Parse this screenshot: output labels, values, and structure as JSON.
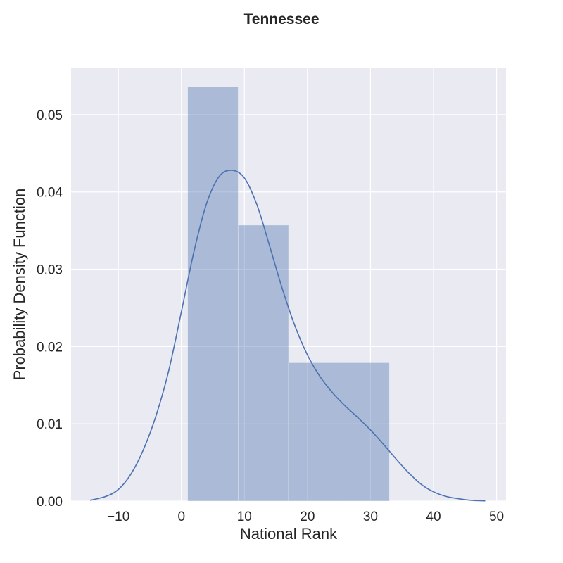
{
  "chart_data": {
    "type": "bar",
    "subtype": "histogram-with-kde",
    "title": "Tennessee",
    "xlabel": "National Rank",
    "ylabel": "Probability Density Function",
    "xlim": [
      -17.5,
      51.5
    ],
    "ylim": [
      0,
      0.056
    ],
    "xticks": [
      -10,
      0,
      10,
      20,
      30,
      40,
      50
    ],
    "xtick_labels": [
      "−10",
      "0",
      "10",
      "20",
      "30",
      "40",
      "50"
    ],
    "yticks": [
      0,
      0.01,
      0.02,
      0.03,
      0.04,
      0.05
    ],
    "ytick_labels": [
      "0.00",
      "0.01",
      "0.02",
      "0.03",
      "0.04",
      "0.05"
    ],
    "grid": true,
    "bins": [
      {
        "x0": 1,
        "x1": 9,
        "density": 0.0536
      },
      {
        "x0": 9,
        "x1": 17,
        "density": 0.0357
      },
      {
        "x0": 17,
        "x1": 25,
        "density": 0.0179
      },
      {
        "x0": 25,
        "x1": 33,
        "density": 0.0179
      }
    ],
    "kde": {
      "x": [
        -14.5,
        -12,
        -10,
        -8,
        -6,
        -4,
        -2,
        0,
        2,
        4,
        6,
        8,
        10,
        12,
        14,
        16,
        18,
        20,
        22,
        24,
        26,
        28,
        30,
        32,
        34,
        36,
        38,
        40,
        42,
        44,
        46,
        48.2
      ],
      "y": [
        0.0001,
        0.0006,
        0.0015,
        0.0035,
        0.0067,
        0.0111,
        0.0169,
        0.0245,
        0.0323,
        0.0385,
        0.042,
        0.0428,
        0.0418,
        0.0383,
        0.033,
        0.0275,
        0.0227,
        0.0189,
        0.0161,
        0.014,
        0.0123,
        0.0108,
        0.0092,
        0.0074,
        0.0055,
        0.0037,
        0.0022,
        0.0012,
        0.0006,
        0.0003,
        0.0001,
        3e-05
      ]
    },
    "colors": {
      "background": "#eaeaf2",
      "grid": "#ffffff",
      "bar_fill": "#4c72b0",
      "line": "#4c72b0"
    }
  }
}
